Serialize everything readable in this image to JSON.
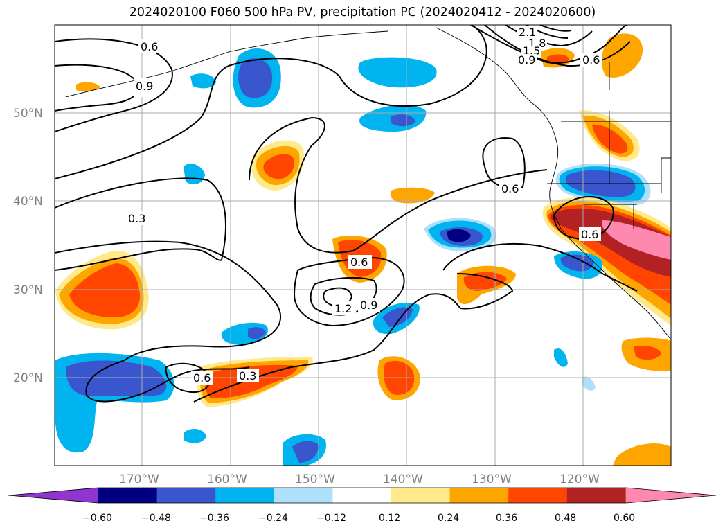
{
  "title": "2024020100 F060 500 hPa PV, precipitation PC (2024020412 - 2024020600)",
  "lat_labels": [
    "50°N",
    "40°N",
    "30°N",
    "20°N"
  ],
  "lon_labels": [
    "170°W",
    "160°W",
    "150°W",
    "140°W",
    "130°W",
    "120°W"
  ],
  "contour_labels": [
    "0.6",
    "0.9",
    "0.3",
    "0.6",
    "1.2",
    "0.9",
    "0.6",
    "0.3",
    "0.6",
    "0.6",
    "2.1",
    "1.8",
    "1.5",
    "0.9",
    "0.6"
  ],
  "colorbar": {
    "ticks": [
      "−0.60",
      "−0.48",
      "−0.36",
      "−0.24",
      "−0.12",
      "0.12",
      "0.24",
      "0.36",
      "0.48",
      "0.60"
    ],
    "colors": [
      "#8f35d0",
      "#000080",
      "#3a56cf",
      "#00b4f0",
      "#aee0fa",
      "#ffffff",
      "#ffe98a",
      "#ffa500",
      "#ff4500",
      "#b22222",
      "#ff88b0"
    ]
  }
}
